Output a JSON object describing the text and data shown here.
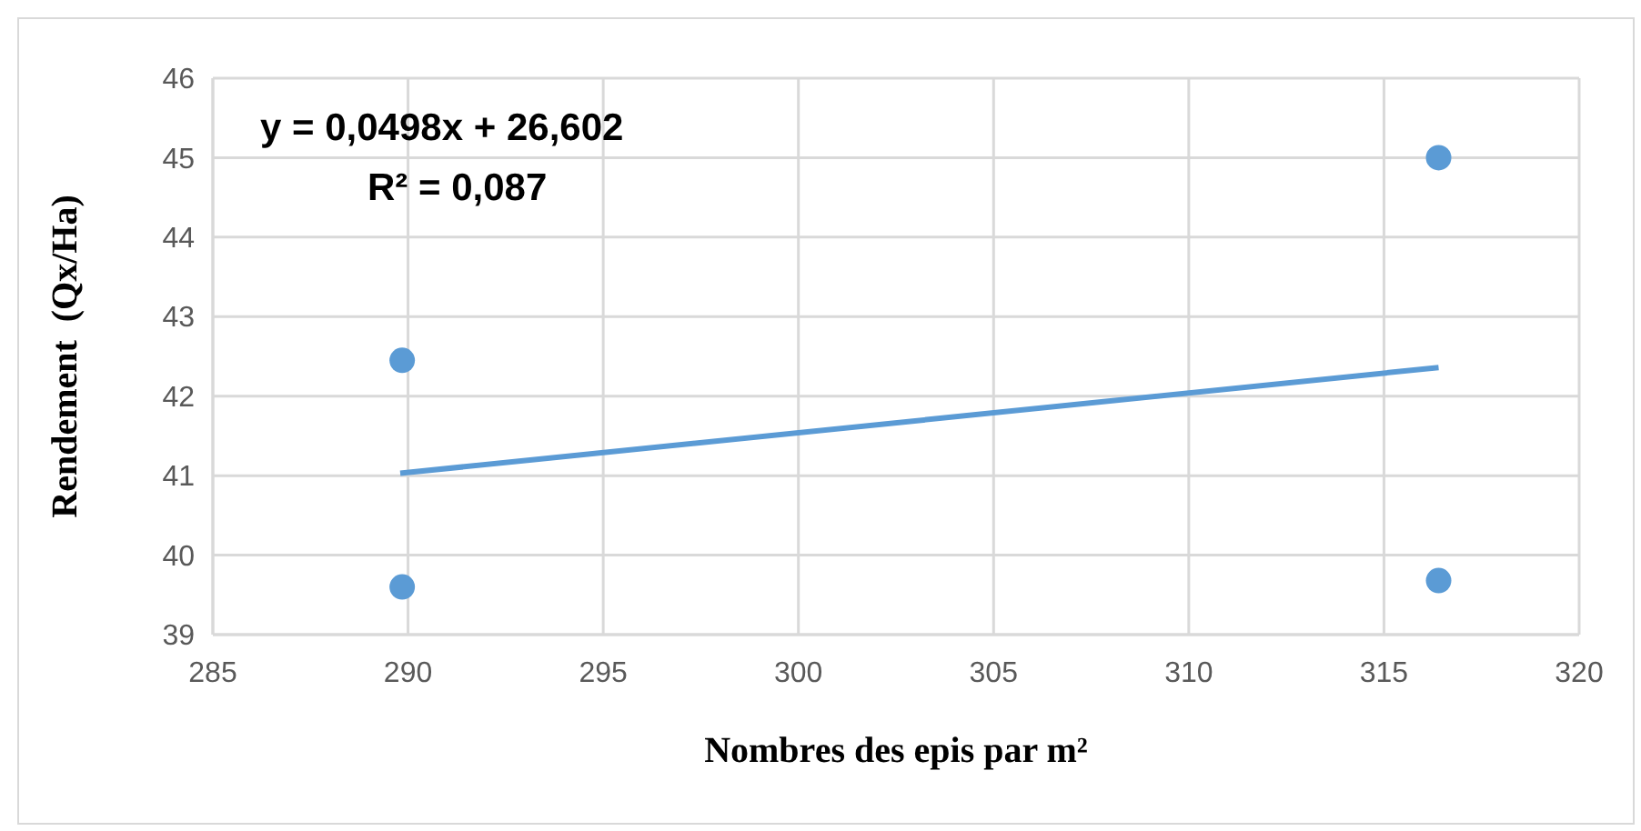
{
  "chart_data": {
    "type": "scatter",
    "xlabel": "Nombres des epis par m²",
    "ylabel": "Rendement  (Qx/Ha)",
    "series": [
      {
        "color": "#5b9bd5",
        "marker": "circle",
        "x": [
          289.85,
          289.85,
          316.4,
          316.4
        ],
        "values": [
          42.45,
          39.6,
          45.0,
          39.68
        ]
      },
      {
        "type": "line",
        "color": "#5b9bd5",
        "marker": "none",
        "line_style": "solid",
        "x": [
          289.8,
          316.4
        ],
        "values": [
          41.03,
          42.36
        ]
      }
    ],
    "xlim": [
      285,
      320
    ],
    "xticks": [
      285,
      290,
      295,
      300,
      305,
      310,
      315,
      320
    ],
    "ylim": [
      39,
      46
    ],
    "yticks": [
      39,
      40,
      41,
      42,
      43,
      44,
      45,
      46
    ],
    "grid": true,
    "annotations": [
      "y = 0,0498x + 26,602",
      "R² = 0,087"
    ]
  }
}
